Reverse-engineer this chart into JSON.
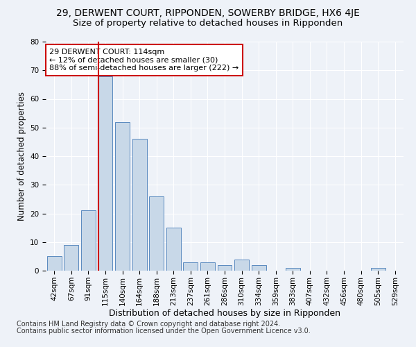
{
  "title": "29, DERWENT COURT, RIPPONDEN, SOWERBY BRIDGE, HX6 4JE",
  "subtitle": "Size of property relative to detached houses in Ripponden",
  "xlabel": "Distribution of detached houses by size in Ripponden",
  "ylabel": "Number of detached properties",
  "bar_labels": [
    "42sqm",
    "67sqm",
    "91sqm",
    "115sqm",
    "140sqm",
    "164sqm",
    "188sqm",
    "213sqm",
    "237sqm",
    "261sqm",
    "286sqm",
    "310sqm",
    "334sqm",
    "359sqm",
    "383sqm",
    "407sqm",
    "432sqm",
    "456sqm",
    "480sqm",
    "505sqm",
    "529sqm"
  ],
  "bar_values": [
    5,
    9,
    21,
    68,
    52,
    46,
    26,
    15,
    3,
    3,
    2,
    4,
    2,
    0,
    1,
    0,
    0,
    0,
    0,
    1,
    0
  ],
  "bar_color": "#c8d8e8",
  "bar_edge_color": "#5a8abf",
  "highlight_line_color": "#cc0000",
  "annotation_text": "29 DERWENT COURT: 114sqm\n← 12% of detached houses are smaller (30)\n88% of semi-detached houses are larger (222) →",
  "annotation_box_color": "#ffffff",
  "annotation_box_edge_color": "#cc0000",
  "ylim": [
    0,
    80
  ],
  "yticks": [
    0,
    10,
    20,
    30,
    40,
    50,
    60,
    70,
    80
  ],
  "footer_line1": "Contains HM Land Registry data © Crown copyright and database right 2024.",
  "footer_line2": "Contains public sector information licensed under the Open Government Licence v3.0.",
  "background_color": "#eef2f8",
  "grid_color": "#ffffff",
  "title_fontsize": 10,
  "subtitle_fontsize": 9.5,
  "axis_label_fontsize": 8.5,
  "tick_fontsize": 7.5,
  "annotation_fontsize": 8,
  "footer_fontsize": 7
}
